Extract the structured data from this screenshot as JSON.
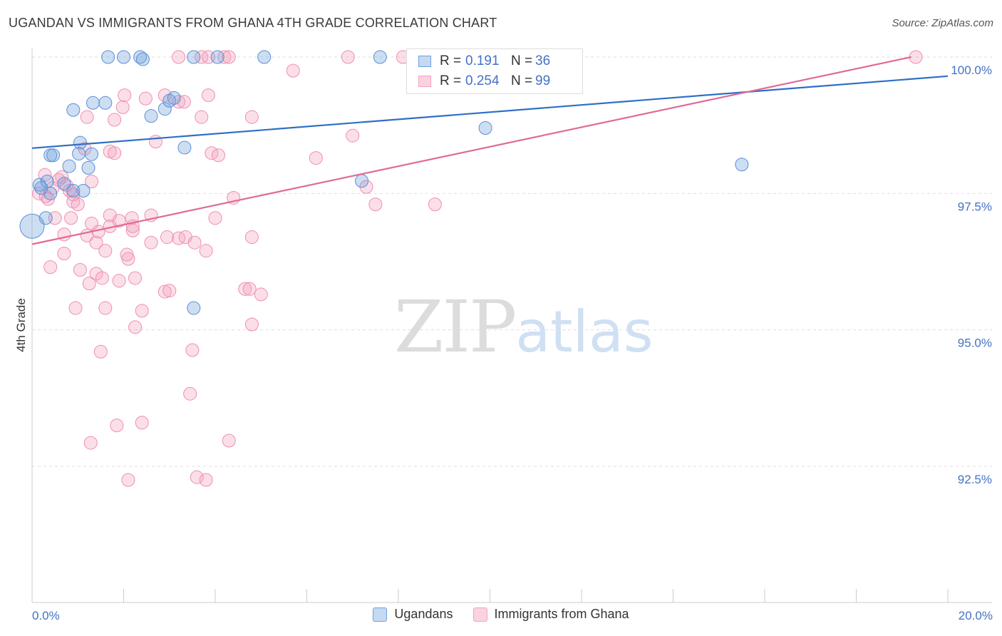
{
  "title": "UGANDAN VS IMMIGRANTS FROM GHANA 4TH GRADE CORRELATION CHART",
  "source": "Source: ZipAtlas.com",
  "watermark": {
    "zip": "ZIP",
    "atlas": "atlas"
  },
  "legend": {
    "rows": [
      {
        "r_label": "R =",
        "r_value": "0.191",
        "n_label": "N =",
        "n_value": "36",
        "color": "#6fa0dc"
      },
      {
        "r_label": "R =",
        "r_value": "0.254",
        "n_label": "N =",
        "n_value": "99",
        "color": "#f4a3bd"
      }
    ]
  },
  "bottom_legend": [
    {
      "label": "Ugandans",
      "color": "#6fa0dc"
    },
    {
      "label": "Immigrants from Ghana",
      "color": "#f4a3bd"
    }
  ],
  "chart_data": {
    "type": "scatter",
    "ylabel": "4th Grade",
    "x_tick_labels": [
      "0.0%",
      "20.0%"
    ],
    "y_tick_labels": [
      "100.0%",
      "97.5%",
      "95.0%",
      "92.5%"
    ],
    "y_ticks": [
      100.0,
      97.5,
      95.0,
      92.5
    ],
    "xlim": [
      0,
      20
    ],
    "ylim": [
      90.2,
      100.2
    ],
    "grid": true,
    "legend_position": "top-center",
    "series": [
      {
        "name": "Ugandans",
        "color": "#6fa0dc",
        "trend": [
          [
            0,
            98.33
          ],
          [
            20,
            99.65
          ]
        ],
        "points": [
          [
            1.66,
            100
          ],
          [
            2.0,
            100
          ],
          [
            2.36,
            100
          ],
          [
            2.42,
            99.96
          ],
          [
            3.53,
            100
          ],
          [
            4.05,
            100
          ],
          [
            5.07,
            100
          ],
          [
            7.6,
            100
          ],
          [
            0.9,
            99.03
          ],
          [
            1.33,
            99.16
          ],
          [
            1.6,
            99.16
          ],
          [
            2.6,
            98.92
          ],
          [
            2.9,
            99.05
          ],
          [
            3.0,
            99.2
          ],
          [
            3.1,
            99.25
          ],
          [
            1.05,
            98.43
          ],
          [
            0.4,
            98.2
          ],
          [
            0.46,
            98.2
          ],
          [
            1.02,
            98.23
          ],
          [
            1.3,
            98.22
          ],
          [
            3.33,
            98.34
          ],
          [
            0.16,
            97.66
          ],
          [
            0.33,
            97.72
          ],
          [
            0.7,
            97.68
          ],
          [
            0.9,
            97.55
          ],
          [
            1.12,
            97.55
          ],
          [
            0.81,
            98.0
          ],
          [
            1.23,
            97.97
          ],
          [
            0.2,
            97.6
          ],
          [
            0.3,
            97.05
          ],
          [
            0.0,
            96.9
          ],
          [
            3.53,
            95.4
          ],
          [
            7.2,
            97.73
          ],
          [
            9.9,
            98.7
          ],
          [
            15.5,
            98.03
          ],
          [
            0.4,
            97.5
          ]
        ]
      },
      {
        "name": "Immigrants from Ghana",
        "color": "#f4a3bd",
        "trend": [
          [
            0,
            96.57
          ],
          [
            19.2,
            100.0
          ]
        ],
        "points": [
          [
            3.2,
            100
          ],
          [
            3.7,
            100
          ],
          [
            3.85,
            100
          ],
          [
            4.2,
            100
          ],
          [
            4.3,
            100
          ],
          [
            6.9,
            100
          ],
          [
            8.1,
            100
          ],
          [
            9.2,
            100
          ],
          [
            19.3,
            100
          ],
          [
            5.7,
            99.75
          ],
          [
            2.02,
            99.3
          ],
          [
            2.48,
            99.24
          ],
          [
            2.9,
            99.3
          ],
          [
            3.2,
            99.18
          ],
          [
            3.32,
            99.18
          ],
          [
            3.85,
            99.3
          ],
          [
            1.2,
            98.9
          ],
          [
            1.98,
            99.08
          ],
          [
            1.8,
            98.85
          ],
          [
            3.7,
            98.9
          ],
          [
            4.8,
            98.9
          ],
          [
            7.0,
            98.56
          ],
          [
            2.7,
            98.45
          ],
          [
            1.15,
            98.32
          ],
          [
            1.7,
            98.27
          ],
          [
            1.8,
            98.24
          ],
          [
            3.92,
            98.24
          ],
          [
            4.07,
            98.2
          ],
          [
            6.2,
            98.15
          ],
          [
            0.28,
            97.84
          ],
          [
            0.65,
            97.8
          ],
          [
            1.3,
            97.72
          ],
          [
            0.45,
            97.6
          ],
          [
            0.58,
            97.75
          ],
          [
            0.75,
            97.65
          ],
          [
            0.82,
            97.55
          ],
          [
            0.9,
            97.48
          ],
          [
            0.15,
            97.5
          ],
          [
            0.3,
            97.45
          ],
          [
            0.35,
            97.4
          ],
          [
            0.9,
            97.35
          ],
          [
            1.0,
            97.3
          ],
          [
            0.85,
            97.05
          ],
          [
            0.5,
            97.05
          ],
          [
            4.4,
            97.42
          ],
          [
            7.3,
            97.62
          ],
          [
            7.5,
            97.3
          ],
          [
            8.8,
            97.3
          ],
          [
            2.18,
            97.05
          ],
          [
            2.6,
            97.1
          ],
          [
            4.0,
            97.05
          ],
          [
            1.7,
            96.9
          ],
          [
            1.9,
            97.0
          ],
          [
            2.2,
            96.82
          ],
          [
            1.45,
            96.8
          ],
          [
            0.7,
            96.75
          ],
          [
            1.2,
            96.73
          ],
          [
            1.4,
            96.6
          ],
          [
            2.6,
            96.6
          ],
          [
            2.95,
            96.7
          ],
          [
            3.2,
            96.68
          ],
          [
            3.35,
            96.7
          ],
          [
            3.55,
            96.6
          ],
          [
            4.8,
            96.7
          ],
          [
            0.7,
            96.4
          ],
          [
            1.6,
            96.45
          ],
          [
            2.07,
            96.38
          ],
          [
            2.1,
            96.3
          ],
          [
            3.8,
            96.45
          ],
          [
            0.4,
            96.15
          ],
          [
            1.05,
            96.1
          ],
          [
            1.4,
            96.03
          ],
          [
            1.53,
            95.95
          ],
          [
            1.25,
            95.85
          ],
          [
            1.9,
            95.9
          ],
          [
            2.25,
            95.95
          ],
          [
            2.9,
            95.7
          ],
          [
            3.0,
            95.72
          ],
          [
            4.65,
            95.75
          ],
          [
            4.75,
            95.75
          ],
          [
            5.0,
            95.65
          ],
          [
            0.95,
            95.4
          ],
          [
            1.6,
            95.4
          ],
          [
            2.4,
            95.35
          ],
          [
            2.25,
            95.05
          ],
          [
            4.8,
            95.1
          ],
          [
            3.5,
            94.63
          ],
          [
            1.5,
            94.6
          ],
          [
            3.45,
            93.83
          ],
          [
            2.4,
            93.3
          ],
          [
            1.85,
            93.25
          ],
          [
            1.28,
            92.93
          ],
          [
            4.3,
            92.97
          ],
          [
            2.1,
            92.25
          ],
          [
            3.6,
            92.3
          ],
          [
            3.8,
            92.25
          ],
          [
            1.7,
            97.1
          ],
          [
            2.2,
            96.9
          ],
          [
            1.3,
            96.95
          ]
        ]
      }
    ]
  }
}
